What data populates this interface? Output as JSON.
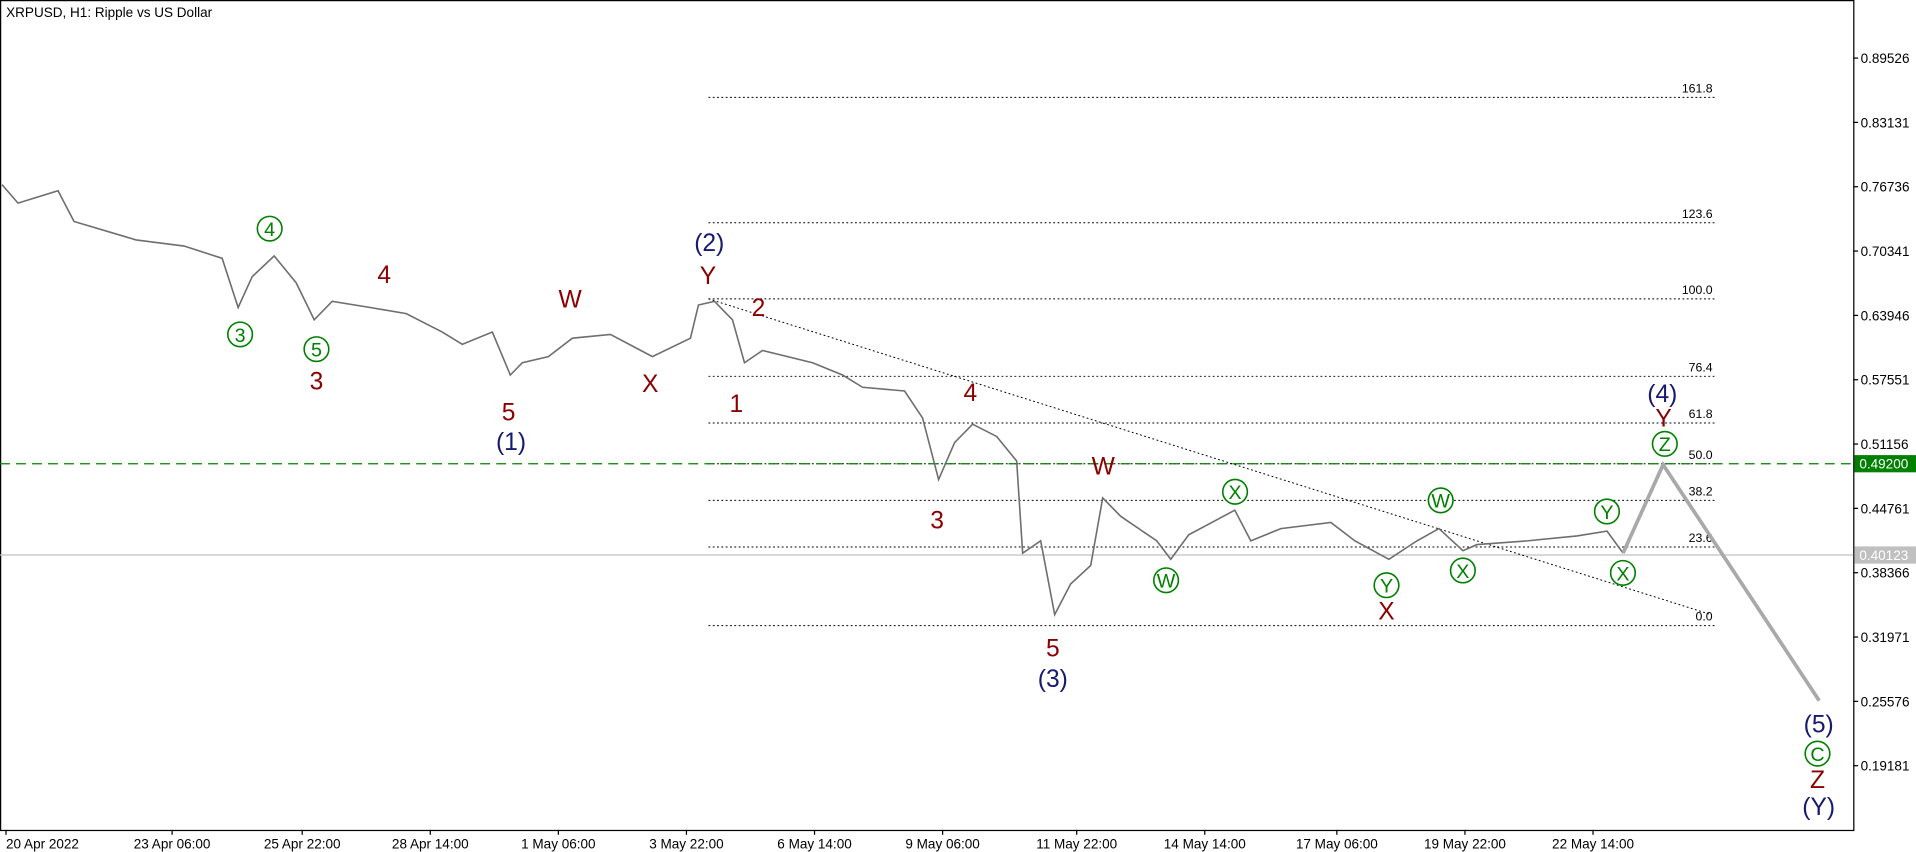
{
  "chart_data": {
    "type": "line",
    "title": "XRPUSD, H1:  Ripple vs US Dollar",
    "xlim": [
      -3,
      923
    ],
    "ylim": [
      0.128,
      0.953
    ],
    "xticks": [
      {
        "value": 0,
        "label": "20 Apr 2022"
      },
      {
        "value": 83,
        "label": "23 Apr 06:00"
      },
      {
        "value": 148,
        "label": "25 Apr 22:00"
      },
      {
        "value": 212,
        "label": "28 Apr 14:00"
      },
      {
        "value": 276,
        "label": "1 May 06:00"
      },
      {
        "value": 340,
        "label": "3 May 22:00"
      },
      {
        "value": 404,
        "label": "6 May 14:00"
      },
      {
        "value": 468,
        "label": "9 May 06:00"
      },
      {
        "value": 535,
        "label": "11 May 22:00"
      },
      {
        "value": 599,
        "label": "14 May 14:00"
      },
      {
        "value": 665,
        "label": "17 May 06:00"
      },
      {
        "value": 729,
        "label": "19 May 22:00"
      },
      {
        "value": 793,
        "label": "22 May 14:00"
      }
    ],
    "yticks": [
      0.89526,
      0.83131,
      0.76736,
      0.70341,
      0.63946,
      0.57551,
      0.51156,
      0.44761,
      0.38366,
      0.31971,
      0.25576,
      0.19181
    ],
    "series": [
      {
        "color": "#6e6e6e",
        "x": [
          -2,
          6,
          26,
          34,
          65,
          89,
          108,
          116,
          123,
          134,
          145,
          154,
          163,
          182,
          200,
          218,
          228,
          243,
          252,
          258,
          271,
          283,
          302,
          323,
          342,
          346,
          354,
          363,
          369,
          378,
          403,
          418,
          428,
          449,
          458,
          466,
          474,
          483,
          495,
          505,
          508,
          517,
          524,
          532,
          542,
          548,
          557,
          575,
          582,
          591,
          614,
          622,
          637,
          662,
          674,
          691,
          705,
          716,
          728,
          735,
          760,
          785,
          800,
          808
        ],
        "values": [
          0.7695,
          0.7511,
          0.7634,
          0.7328,
          0.7145,
          0.7084,
          0.6962,
          0.6473,
          0.6779,
          0.6986,
          0.6718,
          0.6351,
          0.6534,
          0.6473,
          0.6412,
          0.6229,
          0.6107,
          0.6229,
          0.5802,
          0.5924,
          0.5985,
          0.6168,
          0.6205,
          0.5985,
          0.6168,
          0.6498,
          0.6534,
          0.6351,
          0.5924,
          0.6046,
          0.5924,
          0.5802,
          0.568,
          0.5643,
          0.5374,
          0.4763,
          0.513,
          0.5313,
          0.5191,
          0.4947,
          0.4031,
          0.4153,
          0.342,
          0.3725,
          0.3909,
          0.458,
          0.4397,
          0.4153,
          0.397,
          0.4214,
          0.4458,
          0.4153,
          0.4275,
          0.4336,
          0.4153,
          0.397,
          0.4153,
          0.4275,
          0.4055,
          0.4116,
          0.4153,
          0.4202,
          0.425,
          0.4031
        ]
      }
    ],
    "price_lines": [
      {
        "value": 0.492,
        "label": "0.49200",
        "color": "#008000",
        "style": "dashed"
      },
      {
        "value": 0.40123,
        "label": "0.40123",
        "color": "#c0c0c0",
        "style": "solid"
      }
    ],
    "fib_x": [
      351,
      854
    ],
    "fib_levels": [
      {
        "label": "161.8",
        "value": 0.8562
      },
      {
        "label": "123.6",
        "value": 0.7316
      },
      {
        "label": "100.0",
        "value": 0.6559
      },
      {
        "label": "76.4",
        "value": 0.5789
      },
      {
        "label": "61.8",
        "value": 0.5325
      },
      {
        "label": "50.0",
        "value": 0.492
      },
      {
        "label": "38.2",
        "value": 0.4556
      },
      {
        "label": "23.6",
        "value": 0.4092
      },
      {
        "label": "0.0",
        "value": 0.331
      }
    ],
    "trendline": {
      "x": [
        351,
        852
      ],
      "values": [
        0.6559,
        0.342
      ]
    },
    "projection": {
      "color": "#a9a9a9",
      "x": [
        808,
        828,
        906
      ],
      "values": [
        0.4031,
        0.491,
        0.2565
      ]
    },
    "annotation_groups": [
      {
        "color": "#008000",
        "circled": true,
        "labels": [
          "4",
          "3",
          "5",
          "X",
          "W",
          "Y",
          "W",
          "X",
          "Y",
          "X",
          "Z",
          "C"
        ]
      },
      {
        "color": "#8b0000",
        "circled": false,
        "labels": [
          "3",
          "4",
          "5",
          "W",
          "X",
          "Y",
          "2",
          "1",
          "4",
          "3",
          "W",
          "5",
          "X",
          "Y",
          "Z"
        ]
      },
      {
        "color": "#191970",
        "circled": false,
        "labels": [
          "(2)",
          "(1)",
          "(3)",
          "(4)",
          "(5)",
          "(Y)"
        ]
      }
    ]
  }
}
